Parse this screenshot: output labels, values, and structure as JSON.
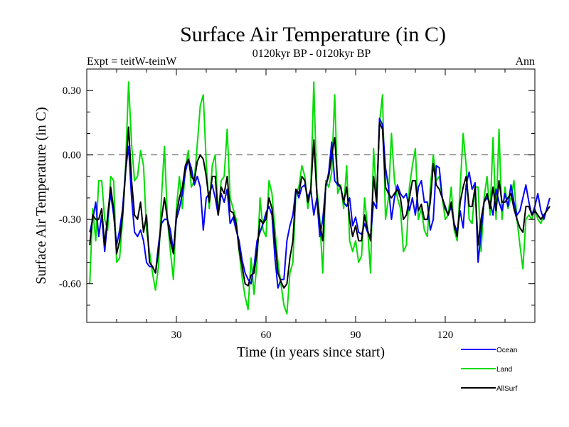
{
  "chart_data": {
    "type": "line",
    "title": "Surface Air Temperature (in C)",
    "subtitle": "0120kyr BP - 0120kyr BP",
    "left_label": "Expt = teitW-teinW",
    "right_label": "Ann",
    "xlabel": "Time (in years since start)",
    "ylabel": "Surface Air Temperature (in C)",
    "xlim": [
      0,
      150
    ],
    "ylim": [
      -0.78,
      0.4
    ],
    "xticks": [
      30,
      60,
      90,
      120
    ],
    "xtick_labels": [
      "30",
      "60",
      "90",
      "120"
    ],
    "yticks": [
      0.3,
      0.0,
      -0.3,
      -0.6
    ],
    "ytick_labels": [
      "0.30",
      "0.00",
      "-0.30",
      "-0.60"
    ],
    "reference_line": 0.0,
    "series": [
      {
        "name": "Ocean",
        "color": "#0000ff",
        "values": [
          -0.36,
          -0.3,
          -0.22,
          -0.38,
          -0.28,
          -0.45,
          -0.3,
          -0.18,
          -0.28,
          -0.42,
          -0.35,
          -0.25,
          -0.07,
          0.04,
          -0.2,
          -0.36,
          -0.38,
          -0.35,
          -0.4,
          -0.5,
          -0.52,
          -0.52,
          -0.55,
          -0.42,
          -0.32,
          -0.3,
          -0.3,
          -0.35,
          -0.45,
          -0.3,
          -0.25,
          -0.18,
          -0.08,
          -0.02,
          -0.06,
          -0.14,
          -0.1,
          -0.15,
          -0.35,
          -0.2,
          -0.18,
          -0.14,
          -0.2,
          -0.28,
          -0.18,
          -0.22,
          -0.16,
          -0.32,
          -0.29,
          -0.35,
          -0.4,
          -0.49,
          -0.55,
          -0.58,
          -0.6,
          -0.52,
          -0.4,
          -0.36,
          -0.32,
          -0.27,
          -0.24,
          -0.28,
          -0.48,
          -0.62,
          -0.58,
          -0.58,
          -0.4,
          -0.33,
          -0.28,
          -0.16,
          -0.2,
          -0.15,
          -0.14,
          -0.2,
          -0.16,
          -0.28,
          -0.2,
          -0.38,
          -0.3,
          -0.15,
          -0.08,
          0.06,
          -0.12,
          -0.14,
          -0.15,
          -0.22,
          -0.24,
          -0.2,
          -0.33,
          -0.29,
          -0.36,
          -0.37,
          -0.32,
          -0.36,
          -0.38,
          -0.22,
          -0.25,
          0.17,
          0.14,
          -0.06,
          -0.15,
          -0.3,
          -0.2,
          -0.14,
          -0.18,
          -0.2,
          -0.18,
          -0.26,
          -0.2,
          -0.28,
          -0.15,
          -0.12,
          -0.22,
          -0.22,
          -0.35,
          -0.3,
          -0.05,
          -0.06,
          -0.2,
          -0.24,
          -0.28,
          -0.24,
          -0.32,
          -0.36,
          -0.26,
          -0.34,
          -0.14,
          -0.08,
          -0.16,
          -0.13,
          -0.5,
          -0.36,
          -0.22,
          -0.2,
          -0.22,
          -0.28,
          -0.16,
          -0.22,
          -0.26,
          -0.18,
          -0.24,
          -0.14,
          -0.22,
          -0.28,
          -0.26,
          -0.2,
          -0.14,
          -0.22,
          -0.28,
          -0.24,
          -0.18,
          -0.26,
          -0.3,
          -0.25,
          -0.2
        ]
      },
      {
        "name": "Land",
        "color": "#00dd00",
        "values": [
          -0.6,
          -0.25,
          -0.4,
          -0.12,
          -0.12,
          -0.3,
          -0.35,
          -0.1,
          -0.12,
          -0.5,
          -0.48,
          -0.3,
          -0.05,
          0.34,
          0.05,
          -0.12,
          -0.1,
          0.02,
          -0.05,
          -0.35,
          -0.45,
          -0.55,
          -0.63,
          -0.52,
          -0.2,
          0.04,
          -0.3,
          -0.45,
          -0.58,
          -0.25,
          -0.1,
          -0.25,
          -0.06,
          0.02,
          -0.15,
          -0.12,
          0.05,
          0.23,
          0.28,
          -0.04,
          -0.25,
          -0.05,
          0.0,
          -0.28,
          -0.12,
          -0.1,
          0.12,
          -0.2,
          -0.25,
          -0.3,
          -0.45,
          -0.57,
          -0.66,
          -0.72,
          -0.48,
          -0.65,
          -0.5,
          -0.2,
          -0.35,
          -0.38,
          -0.12,
          -0.18,
          -0.35,
          -0.5,
          -0.6,
          -0.7,
          -0.74,
          -0.55,
          -0.5,
          -0.18,
          -0.15,
          -0.05,
          -0.1,
          -0.25,
          -0.15,
          0.34,
          -0.15,
          -0.3,
          -0.55,
          -0.12,
          -0.15,
          -0.08,
          0.28,
          -0.18,
          -0.14,
          -0.25,
          -0.05,
          -0.4,
          -0.45,
          -0.4,
          -0.5,
          -0.47,
          -0.2,
          -0.34,
          -0.55,
          0.03,
          -0.2,
          0.15,
          0.28,
          -0.3,
          -0.2,
          0.1,
          -0.12,
          -0.2,
          -0.25,
          -0.45,
          -0.42,
          -0.15,
          -0.05,
          0.03,
          -0.3,
          -0.25,
          -0.35,
          -0.38,
          -0.15,
          0.0,
          -0.12,
          -0.1,
          -0.2,
          -0.3,
          -0.28,
          -0.15,
          -0.35,
          -0.4,
          -0.15,
          0.1,
          -0.05,
          -0.3,
          -0.32,
          -0.15,
          -0.15,
          -0.45,
          -0.2,
          -0.1,
          -0.28,
          0.08,
          -0.3,
          0.12,
          -0.3,
          -0.15,
          -0.25,
          -0.2,
          -0.12,
          -0.3,
          -0.42,
          -0.53,
          -0.3,
          -0.28,
          -0.3,
          -0.25,
          -0.3,
          -0.32,
          -0.28,
          -0.26
        ]
      },
      {
        "name": "AllSurf",
        "color": "#000000",
        "values": [
          -0.42,
          -0.28,
          -0.3,
          -0.3,
          -0.25,
          -0.42,
          -0.28,
          -0.15,
          -0.25,
          -0.46,
          -0.4,
          -0.28,
          -0.08,
          0.13,
          -0.12,
          -0.28,
          -0.3,
          -0.22,
          -0.36,
          -0.28,
          -0.5,
          -0.52,
          -0.55,
          -0.45,
          -0.3,
          -0.2,
          -0.3,
          -0.4,
          -0.46,
          -0.28,
          -0.2,
          -0.15,
          -0.05,
          -0.02,
          -0.1,
          -0.12,
          -0.03,
          0.0,
          -0.02,
          -0.1,
          -0.22,
          -0.1,
          -0.1,
          -0.28,
          -0.15,
          -0.18,
          -0.1,
          -0.26,
          -0.27,
          -0.32,
          -0.44,
          -0.52,
          -0.6,
          -0.61,
          -0.56,
          -0.55,
          -0.45,
          -0.3,
          -0.32,
          -0.3,
          -0.2,
          -0.25,
          -0.4,
          -0.55,
          -0.59,
          -0.62,
          -0.6,
          -0.48,
          -0.4,
          -0.16,
          -0.18,
          -0.1,
          -0.12,
          -0.22,
          -0.16,
          0.07,
          -0.18,
          -0.32,
          -0.4,
          -0.14,
          -0.1,
          0.0,
          0.08,
          -0.13,
          -0.15,
          -0.22,
          -0.15,
          -0.3,
          -0.38,
          -0.33,
          -0.4,
          -0.4,
          -0.28,
          -0.35,
          -0.4,
          -0.1,
          -0.22,
          0.15,
          0.12,
          -0.15,
          -0.18,
          -0.2,
          -0.18,
          -0.16,
          -0.2,
          -0.3,
          -0.28,
          -0.2,
          -0.12,
          -0.12,
          -0.26,
          -0.23,
          -0.3,
          -0.3,
          -0.22,
          -0.04,
          -0.14,
          -0.16,
          -0.2,
          -0.25,
          -0.28,
          -0.22,
          -0.33,
          -0.38,
          -0.22,
          -0.15,
          -0.1,
          -0.24,
          -0.24,
          -0.15,
          -0.42,
          -0.3,
          -0.22,
          -0.18,
          -0.25,
          -0.15,
          -0.26,
          -0.12,
          -0.22,
          -0.22,
          -0.2,
          -0.18,
          -0.25,
          -0.3,
          -0.34,
          -0.36,
          -0.24,
          -0.24,
          -0.28,
          -0.26,
          -0.28,
          -0.3,
          -0.28,
          -0.26,
          -0.24
        ]
      }
    ]
  }
}
